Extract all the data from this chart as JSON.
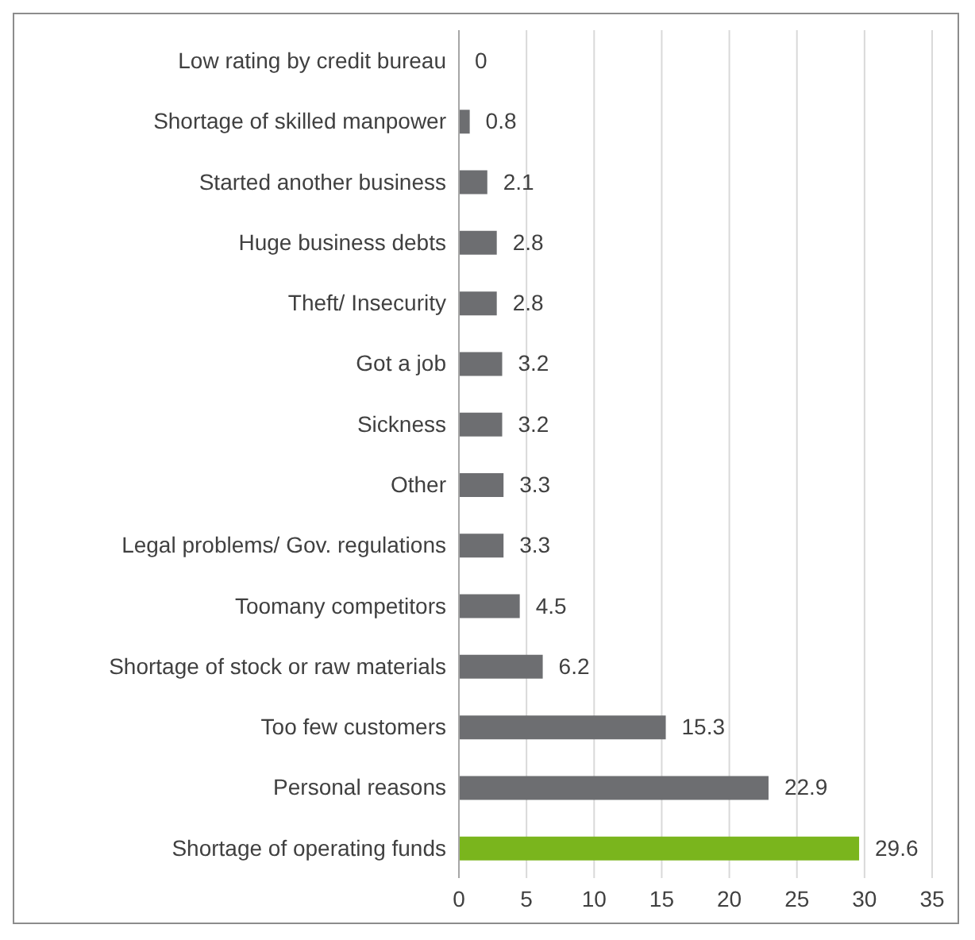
{
  "chart_data": {
    "type": "bar",
    "orientation": "horizontal",
    "categories": [
      "Low rating by credit bureau",
      "Shortage of skilled manpower",
      "Started another business",
      "Huge business debts",
      "Theft/ Insecurity",
      "Got a job",
      "Sickness",
      "Other",
      "Legal problems/ Gov. regulations",
      "Toomany competitors",
      "Shortage of stock or raw materials",
      "Too few customers",
      "Personal reasons",
      "Shortage of operating funds"
    ],
    "values": [
      0,
      0.8,
      2.1,
      2.8,
      2.8,
      3.2,
      3.2,
      3.3,
      3.3,
      4.5,
      6.2,
      15.3,
      22.9,
      29.6
    ],
    "colors": [
      "#6d6e71",
      "#6d6e71",
      "#6d6e71",
      "#6d6e71",
      "#6d6e71",
      "#6d6e71",
      "#6d6e71",
      "#6d6e71",
      "#6d6e71",
      "#6d6e71",
      "#6d6e71",
      "#6d6e71",
      "#6d6e71",
      "#7ab51d"
    ],
    "xlim": [
      0,
      35
    ],
    "xticks": [
      0,
      5,
      10,
      15,
      20,
      25,
      30,
      35
    ],
    "grid": "x",
    "data_labels": true,
    "legend": false
  }
}
